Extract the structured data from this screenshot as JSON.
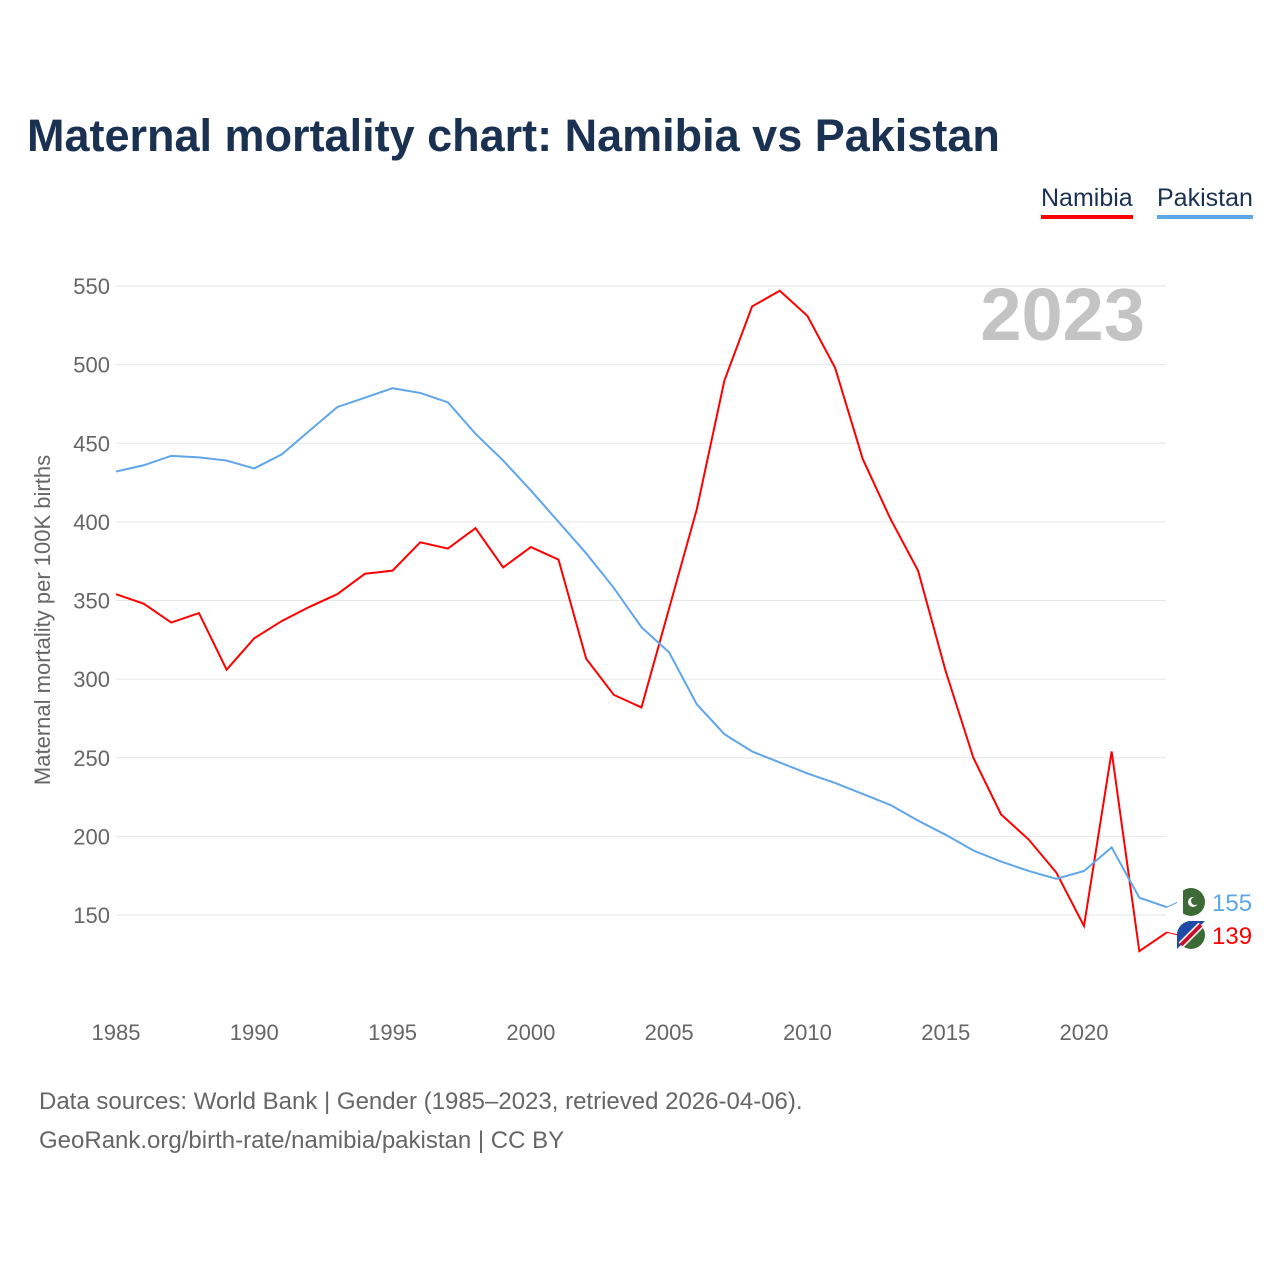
{
  "chart_data": {
    "type": "line",
    "title": "Maternal mortality chart: Namibia vs Pakistan",
    "ylabel": "Maternal mortality per 100K births",
    "xlabel": "",
    "year_label": "2023",
    "ylim": [
      100,
      560
    ],
    "xlim": [
      1985,
      2023
    ],
    "yticks": [
      150,
      200,
      250,
      300,
      350,
      400,
      450,
      500,
      550
    ],
    "xticks": [
      1985,
      1990,
      1995,
      2000,
      2005,
      2010,
      2015,
      2020
    ],
    "grid": true,
    "legend_position": "top-right",
    "x": [
      1985,
      1986,
      1987,
      1988,
      1989,
      1990,
      1991,
      1992,
      1993,
      1994,
      1995,
      1996,
      1997,
      1998,
      1999,
      2000,
      2001,
      2002,
      2003,
      2004,
      2005,
      2006,
      2007,
      2008,
      2009,
      2010,
      2011,
      2012,
      2013,
      2014,
      2015,
      2016,
      2017,
      2018,
      2019,
      2020,
      2021,
      2022,
      2023
    ],
    "series": [
      {
        "name": "Namibia",
        "color": "#ff0000",
        "end_label": "139",
        "values": [
          354,
          348,
          336,
          342,
          306,
          326,
          337,
          346,
          354,
          367,
          369,
          387,
          383,
          396,
          371,
          384,
          376,
          313,
          290,
          282,
          345,
          408,
          490,
          537,
          547,
          531,
          498,
          440,
          402,
          369,
          305,
          250,
          214,
          198,
          177,
          143,
          254,
          127,
          139
        ]
      },
      {
        "name": "Pakistan",
        "color": "#5fa5ea",
        "end_label": "155",
        "values": [
          432,
          436,
          442,
          441,
          439,
          434,
          443,
          458,
          473,
          479,
          485,
          482,
          476,
          456,
          439,
          420,
          400,
          380,
          358,
          333,
          317,
          284,
          265,
          254,
          247,
          240,
          234,
          227,
          220,
          210,
          201,
          191,
          184,
          178,
          173,
          178,
          193,
          161,
          155
        ]
      }
    ]
  },
  "sources": {
    "line1": "Data sources: World Bank | Gender (1985–2023, retrieved 2026-04-06).",
    "line2": "GeoRank.org/birth-rate/namibia/pakistan | CC BY"
  }
}
